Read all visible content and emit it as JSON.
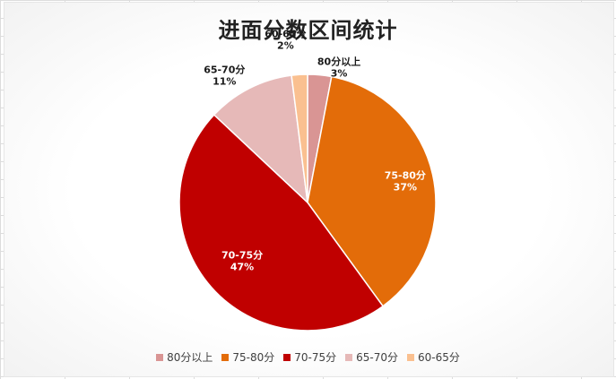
{
  "chart_data": {
    "type": "pie",
    "title": "进面分数区间统计",
    "slices": [
      {
        "label": "80分以上",
        "value": 3,
        "display": "3%",
        "color": "#D99594"
      },
      {
        "label": "75-80分",
        "value": 37,
        "display": "37%",
        "color": "#E36C09"
      },
      {
        "label": "70-75分",
        "value": 47,
        "display": "47%",
        "color": "#C00000"
      },
      {
        "label": "65-70分",
        "value": 11,
        "display": "11%",
        "color": "#E6B9B8"
      },
      {
        "label": "60-65分",
        "value": 2,
        "display": "2%",
        "color": "#FAC090"
      }
    ],
    "legend_position": "bottom",
    "start_angle_deg": 0,
    "direction": "clockwise"
  }
}
